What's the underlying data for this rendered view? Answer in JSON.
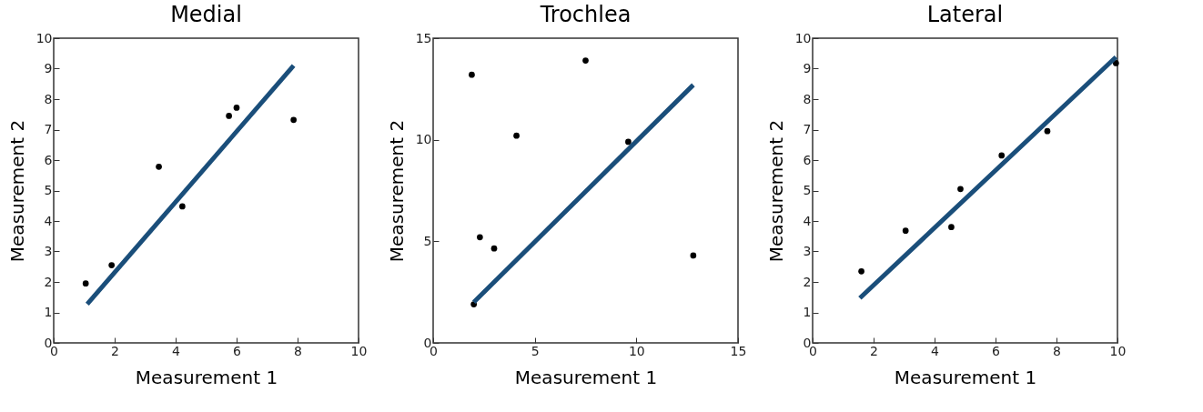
{
  "chart_data": [
    {
      "type": "scatter",
      "title": "Medial",
      "xlabel": "Measurement 1",
      "ylabel": "Measurement 2",
      "xlim": [
        0,
        10
      ],
      "ylim": [
        0,
        10
      ],
      "xticks": [
        0,
        2,
        4,
        6,
        8,
        10
      ],
      "yticks": [
        0,
        1,
        2,
        3,
        4,
        5,
        6,
        7,
        8,
        9,
        10
      ],
      "series": [
        {
          "type": "scatter",
          "color": "#000000",
          "marker": "circle",
          "x": [
            1.05,
            1.9,
            1.97,
            3.45,
            4.22,
            5.75,
            6.0,
            7.87
          ],
          "values": [
            1.95,
            2.55,
            null,
            5.78,
            4.48,
            7.45,
            7.72,
            7.32
          ]
        },
        {
          "type": "line",
          "color": "#1a4e7a",
          "x": [
            1.1,
            7.87
          ],
          "values": [
            1.27,
            9.1
          ]
        }
      ]
    },
    {
      "type": "scatter",
      "title": "Trochlea",
      "xlabel": "Measurement 1",
      "ylabel": "Measurement 2",
      "xlim": [
        0,
        15
      ],
      "ylim": [
        0,
        15
      ],
      "xticks": [
        0,
        5,
        10,
        15
      ],
      "yticks": [
        0,
        5,
        10,
        15
      ],
      "series": [
        {
          "type": "scatter",
          "color": "#000000",
          "marker": "circle",
          "x": [
            1.9,
            2.0,
            2.3,
            3.0,
            4.1,
            7.5,
            9.6,
            12.8
          ],
          "values": [
            13.2,
            1.9,
            5.2,
            4.65,
            10.2,
            13.9,
            9.9,
            4.3
          ]
        },
        {
          "type": "line",
          "color": "#1a4e7a",
          "x": [
            2.0,
            12.8
          ],
          "values": [
            2.0,
            12.7
          ]
        }
      ]
    },
    {
      "type": "scatter",
      "title": "Lateral",
      "xlabel": "Measurement 1",
      "ylabel": "Measurement 2",
      "xlim": [
        0,
        10
      ],
      "ylim": [
        0,
        10
      ],
      "xticks": [
        0,
        2,
        4,
        6,
        8,
        10
      ],
      "yticks": [
        0,
        1,
        2,
        3,
        4,
        5,
        6,
        7,
        8,
        9,
        10
      ],
      "series": [
        {
          "type": "scatter",
          "color": "#000000",
          "marker": "circle",
          "x": [
            1.6,
            3.05,
            4.55,
            4.85,
            6.2,
            7.7,
            9.95
          ],
          "values": [
            2.35,
            3.68,
            3.8,
            5.05,
            6.15,
            6.95,
            9.18
          ]
        },
        {
          "type": "line",
          "color": "#1a4e7a",
          "x": [
            1.55,
            9.95
          ],
          "values": [
            1.47,
            9.38
          ]
        }
      ]
    }
  ]
}
